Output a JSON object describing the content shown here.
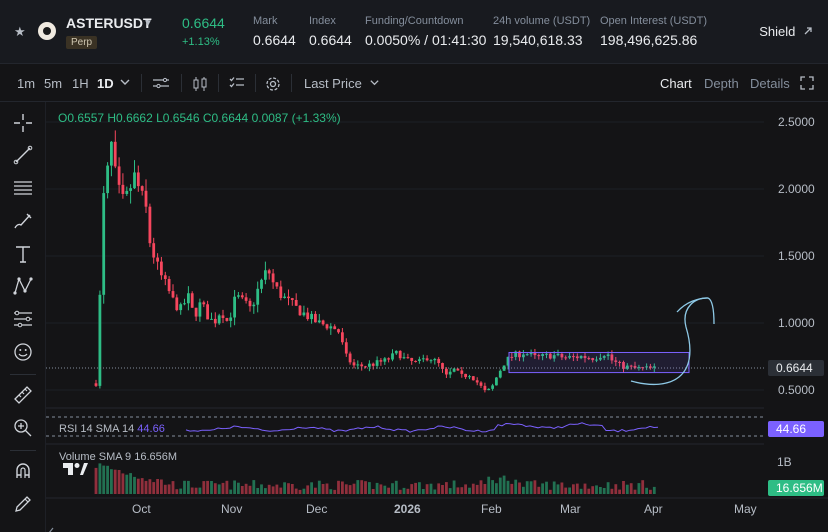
{
  "header": {
    "symbol": "ASTERUSDT",
    "contract_type": "Perp",
    "last_price": "0.6644",
    "change_pct": "+1.13%",
    "stats": [
      {
        "label": "Mark",
        "value": "0.6644"
      },
      {
        "label": "Index",
        "value": "0.6644"
      },
      {
        "label": "Funding/Countdown",
        "value": "0.0050% / 01:41:30"
      },
      {
        "label": "24h volume (USDT)",
        "value": "19,540,618.33"
      },
      {
        "label": "Open Interest (USDT)",
        "value": "198,496,625.86"
      }
    ],
    "shield_label": "Shield"
  },
  "toolbar": {
    "timeframes": [
      "1m",
      "5m",
      "1H",
      "1D"
    ],
    "active_timeframe": "1D",
    "price_type": "Last Price",
    "view_tabs": [
      "Chart",
      "Depth",
      "Details"
    ],
    "active_view": "Chart"
  },
  "ohlc": {
    "open": "O0.6557",
    "high": "H0.6662",
    "low": "L0.6546",
    "close": "C0.6644",
    "change": "0.0087 (+1.33%)"
  },
  "indicators": {
    "rsi_name": "RSI 14 SMA 14",
    "rsi_value": "44.66",
    "volume_name": "Volume SMA 9",
    "volume_value": "16.656M"
  },
  "chart_data": {
    "type": "candlestick",
    "price_ticks": [
      "2.5000",
      "2.0000",
      "1.5000",
      "1.0000",
      "0.5000"
    ],
    "current_price": "0.6644",
    "rsi_tag": "44.66",
    "volume_tick": "1B",
    "volume_tag": "16.656M",
    "x_labels": [
      "Oct",
      "Nov",
      "Dec",
      "2026",
      "Feb",
      "Mar",
      "Apr",
      "May"
    ],
    "colors": {
      "up": "#2ebd85",
      "down": "#f6465d",
      "rsi": "#7b61ff",
      "drawing": "#8ec9e6"
    }
  }
}
